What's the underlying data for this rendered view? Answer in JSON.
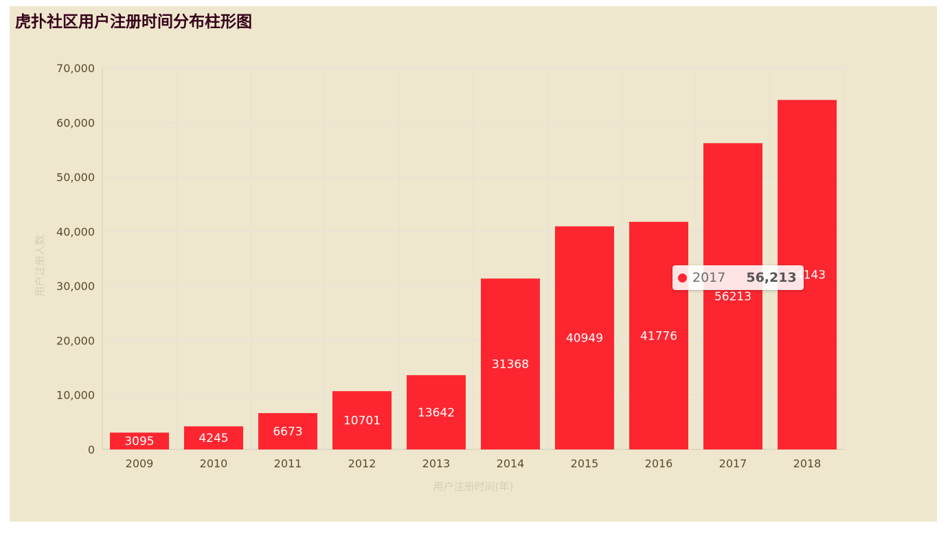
{
  "title": "虎扑社区用户注册时间分布柱形图",
  "colors": {
    "background": "#efe7cd",
    "bar": "#fd2630",
    "title": "#35001a",
    "axis_text": "#5a4a2e",
    "axis_name": "#d5cdb8",
    "grid": "#e6e2d6"
  },
  "chart_data": {
    "type": "bar",
    "title": "虎扑社区用户注册时间分布柱形图",
    "xlabel": "用户注册时间(年)",
    "ylabel": "用户注册人数",
    "categories": [
      "2009",
      "2010",
      "2011",
      "2012",
      "2013",
      "2014",
      "2015",
      "2016",
      "2017",
      "2018"
    ],
    "series": [
      {
        "values": [
          3095,
          4245,
          6673,
          10701,
          13642,
          31368,
          40949,
          41776,
          56213,
          64143
        ]
      }
    ],
    "data_labels": [
      "3095",
      "4245",
      "6673",
      "10701",
      "13642",
      "31368",
      "40949",
      "41776",
      "56213",
      "64143"
    ],
    "ylim": [
      0,
      70000
    ],
    "yticks": [
      0,
      10000,
      20000,
      30000,
      40000,
      50000,
      60000,
      70000
    ],
    "ytick_labels": [
      "0",
      "10,000",
      "20,000",
      "30,000",
      "40,000",
      "50,000",
      "60,000",
      "70,000"
    ],
    "grid": true,
    "legend": "none"
  },
  "tooltip": {
    "name": "2017",
    "value": "56,213"
  }
}
